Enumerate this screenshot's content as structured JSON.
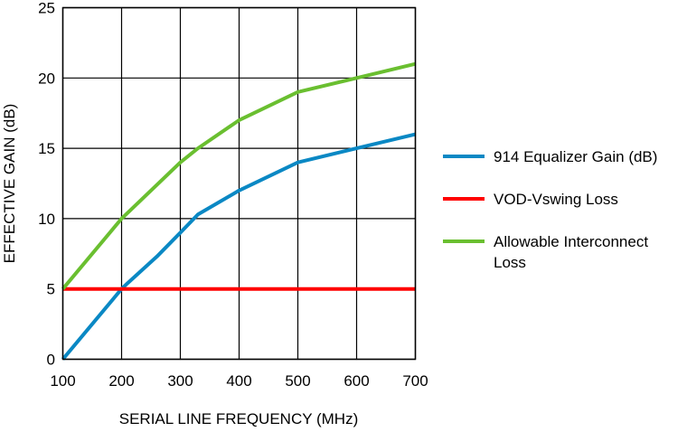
{
  "chart_data": {
    "type": "line",
    "title": "",
    "xlabel": "SERIAL LINE FREQUENCY (MHz)",
    "ylabel": "EFFECTIVE GAIN (dB)",
    "xlim": [
      100,
      700
    ],
    "ylim": [
      0,
      25
    ],
    "xticks": [
      100,
      200,
      300,
      400,
      500,
      600,
      700
    ],
    "yticks": [
      0,
      5,
      10,
      15,
      20,
      25
    ],
    "grid": true,
    "legend_position": "right",
    "series": [
      {
        "name": "914 Equalizer Gain (dB)",
        "color": "#0a88c4",
        "x": [
          100,
          200,
          210,
          260,
          300,
          330,
          400,
          500,
          600,
          700
        ],
        "y": [
          0,
          5,
          5.4,
          7.3,
          9,
          10.3,
          12,
          14,
          15,
          16
        ]
      },
      {
        "name": "VOD-Vswing Loss",
        "color": "#ff0000",
        "x": [
          100,
          700
        ],
        "y": [
          5,
          5
        ]
      },
      {
        "name": "Allowable Interconnect Loss",
        "name_lines": [
          "Allowable Interconnect",
          "Loss"
        ],
        "color": "#6abf30",
        "x": [
          100,
          200,
          300,
          330,
          400,
          500,
          600,
          700
        ],
        "y": [
          5,
          10,
          14,
          15,
          17,
          19,
          20,
          21
        ]
      }
    ]
  }
}
